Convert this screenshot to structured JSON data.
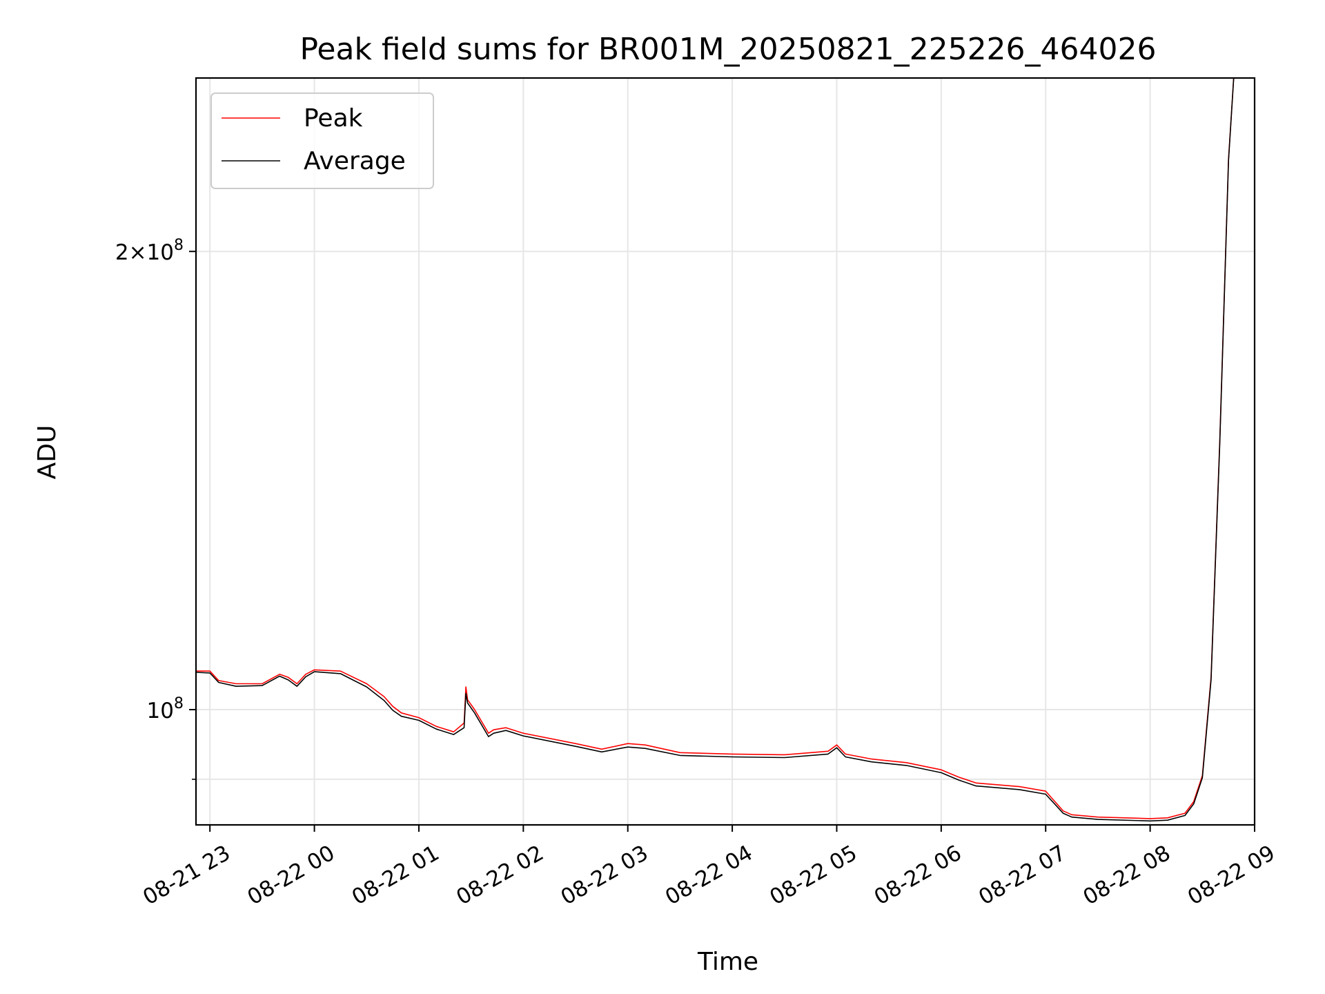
{
  "chart_data": {
    "type": "line",
    "title": "Peak field sums for BR001M_20250821_225226_464026",
    "xlabel": "Time",
    "ylabel": "ADU",
    "yscale": "log",
    "grid": true,
    "legend_position": "top-left",
    "xlim": [
      "2025-08-21 22:52",
      "2025-08-22 09:00"
    ],
    "ylim": [
      84000000,
      260000000
    ],
    "x_ticks": [
      {
        "value": "2025-08-21 23:00",
        "label": "08-21 23"
      },
      {
        "value": "2025-08-22 00:00",
        "label": "08-22 00"
      },
      {
        "value": "2025-08-22 01:00",
        "label": "08-22 01"
      },
      {
        "value": "2025-08-22 02:00",
        "label": "08-22 02"
      },
      {
        "value": "2025-08-22 03:00",
        "label": "08-22 03"
      },
      {
        "value": "2025-08-22 04:00",
        "label": "08-22 04"
      },
      {
        "value": "2025-08-22 05:00",
        "label": "08-22 05"
      },
      {
        "value": "2025-08-22 06:00",
        "label": "08-22 06"
      },
      {
        "value": "2025-08-22 07:00",
        "label": "08-22 07"
      },
      {
        "value": "2025-08-22 08:00",
        "label": "08-22 08"
      },
      {
        "value": "2025-08-22 09:00",
        "label": "08-22 09"
      }
    ],
    "y_major_ticks": [
      {
        "value": 100000000,
        "base": "10",
        "exp": "8"
      },
      {
        "value": 200000000,
        "mult": "2",
        "base": "10",
        "exp": "8"
      }
    ],
    "y_minor_ticks": [
      90000000
    ],
    "series": [
      {
        "name": "Peak",
        "color": "#ff0000",
        "x": [
          "2025-08-21 22:52",
          "2025-08-21 23:00",
          "2025-08-21 23:05",
          "2025-08-21 23:15",
          "2025-08-21 23:30",
          "2025-08-21 23:40",
          "2025-08-21 23:45",
          "2025-08-21 23:50",
          "2025-08-21 23:55",
          "2025-08-22 00:00",
          "2025-08-22 00:15",
          "2025-08-22 00:30",
          "2025-08-22 00:40",
          "2025-08-22 00:45",
          "2025-08-22 00:50",
          "2025-08-22 01:00",
          "2025-08-22 01:10",
          "2025-08-22 01:20",
          "2025-08-22 01:26",
          "2025-08-22 01:27",
          "2025-08-22 01:28",
          "2025-08-22 01:32",
          "2025-08-22 01:40",
          "2025-08-22 01:43",
          "2025-08-22 01:50",
          "2025-08-22 02:00",
          "2025-08-22 02:30",
          "2025-08-22 02:45",
          "2025-08-22 03:00",
          "2025-08-22 03:10",
          "2025-08-22 03:30",
          "2025-08-22 04:00",
          "2025-08-22 04:30",
          "2025-08-22 04:55",
          "2025-08-22 05:00",
          "2025-08-22 05:05",
          "2025-08-22 05:20",
          "2025-08-22 05:40",
          "2025-08-22 06:00",
          "2025-08-22 06:10",
          "2025-08-22 06:20",
          "2025-08-22 06:45",
          "2025-08-22 07:00",
          "2025-08-22 07:10",
          "2025-08-22 07:15",
          "2025-08-22 07:30",
          "2025-08-22 08:00",
          "2025-08-22 08:10",
          "2025-08-22 08:20",
          "2025-08-22 08:25",
          "2025-08-22 08:30",
          "2025-08-22 08:35",
          "2025-08-22 08:40",
          "2025-08-22 08:45",
          "2025-08-22 08:48"
        ],
        "values": [
          106000000,
          106000000,
          104500000,
          104000000,
          104000000,
          105500000,
          105000000,
          104000000,
          105500000,
          106200000,
          106000000,
          104000000,
          102000000,
          100500000,
          99500000,
          98800000,
          97500000,
          96700000,
          98000000,
          103500000,
          101500000,
          100000000,
          96500000,
          97000000,
          97300000,
          96500000,
          95000000,
          94200000,
          95000000,
          94800000,
          93700000,
          93500000,
          93400000,
          93900000,
          94800000,
          93500000,
          92800000,
          92300000,
          91300000,
          90300000,
          89500000,
          89000000,
          88400000,
          85800000,
          85300000,
          85000000,
          84800000,
          84900000,
          85500000,
          87000000,
          90500000,
          105000000,
          150000000,
          230000000,
          260000000
        ]
      },
      {
        "name": "Average",
        "color": "#000000",
        "x": [
          "2025-08-21 22:52",
          "2025-08-21 23:00",
          "2025-08-21 23:05",
          "2025-08-21 23:15",
          "2025-08-21 23:30",
          "2025-08-21 23:40",
          "2025-08-21 23:45",
          "2025-08-21 23:50",
          "2025-08-21 23:55",
          "2025-08-22 00:00",
          "2025-08-22 00:15",
          "2025-08-22 00:30",
          "2025-08-22 00:40",
          "2025-08-22 00:45",
          "2025-08-22 00:50",
          "2025-08-22 01:00",
          "2025-08-22 01:10",
          "2025-08-22 01:20",
          "2025-08-22 01:26",
          "2025-08-22 01:27",
          "2025-08-22 01:28",
          "2025-08-22 01:32",
          "2025-08-22 01:40",
          "2025-08-22 01:43",
          "2025-08-22 01:50",
          "2025-08-22 02:00",
          "2025-08-22 02:30",
          "2025-08-22 02:45",
          "2025-08-22 03:00",
          "2025-08-22 03:10",
          "2025-08-22 03:30",
          "2025-08-22 04:00",
          "2025-08-22 04:30",
          "2025-08-22 04:55",
          "2025-08-22 05:00",
          "2025-08-22 05:05",
          "2025-08-22 05:20",
          "2025-08-22 05:40",
          "2025-08-22 06:00",
          "2025-08-22 06:10",
          "2025-08-22 06:20",
          "2025-08-22 06:45",
          "2025-08-22 07:00",
          "2025-08-22 07:10",
          "2025-08-22 07:15",
          "2025-08-22 07:30",
          "2025-08-22 08:00",
          "2025-08-22 08:10",
          "2025-08-22 08:20",
          "2025-08-22 08:25",
          "2025-08-22 08:30",
          "2025-08-22 08:35",
          "2025-08-22 08:40",
          "2025-08-22 08:45",
          "2025-08-22 08:48"
        ],
        "values": [
          105800000,
          105700000,
          104200000,
          103600000,
          103700000,
          105200000,
          104600000,
          103600000,
          105100000,
          105900000,
          105600000,
          103500000,
          101400000,
          99900000,
          99000000,
          98400000,
          97100000,
          96300000,
          97300000,
          102500000,
          101000000,
          99500000,
          96000000,
          96500000,
          96900000,
          96100000,
          94600000,
          93800000,
          94500000,
          94300000,
          93300000,
          93100000,
          93000000,
          93500000,
          94400000,
          93100000,
          92400000,
          91900000,
          90900000,
          89900000,
          89100000,
          88600000,
          88000000,
          85500000,
          85000000,
          84700000,
          84500000,
          84600000,
          85200000,
          86700000,
          90200000,
          104600000,
          149500000,
          229500000,
          260000000
        ]
      }
    ]
  }
}
